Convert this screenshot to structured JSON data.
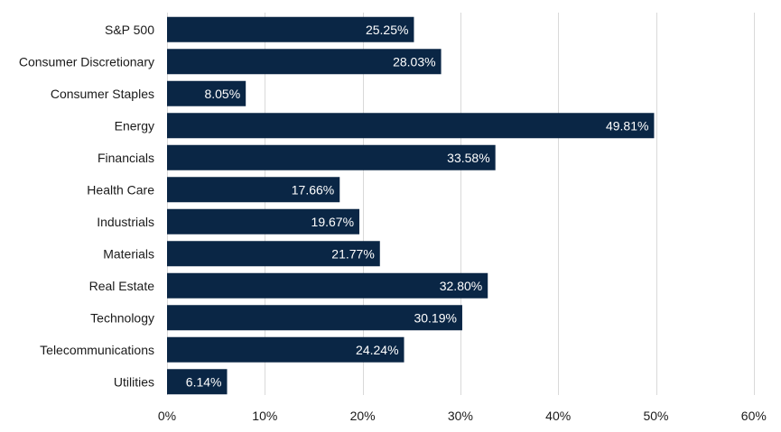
{
  "chart_data": {
    "type": "bar",
    "orientation": "horizontal",
    "categories": [
      "S&P 500",
      "Consumer Discretionary",
      "Consumer Staples",
      "Energy",
      "Financials",
      "Health Care",
      "Industrials",
      "Materials",
      "Real Estate",
      "Technology",
      "Telecommunications",
      "Utilities"
    ],
    "values": [
      25.25,
      28.03,
      8.05,
      49.81,
      33.58,
      17.66,
      19.67,
      21.77,
      32.8,
      30.19,
      24.24,
      6.14
    ],
    "data_labels": [
      "25.25%",
      "28.03%",
      "8.05%",
      "49.81%",
      "33.58%",
      "17.66%",
      "19.67%",
      "21.77%",
      "32.80%",
      "30.19%",
      "24.24%",
      "6.14%"
    ],
    "x_ticks": [
      "0%",
      "10%",
      "20%",
      "30%",
      "40%",
      "50%",
      "60%"
    ],
    "x_tick_values": [
      0,
      10,
      20,
      30,
      40,
      50,
      60
    ],
    "xlim": [
      0,
      60
    ],
    "title": "",
    "xlabel": "",
    "ylabel": "",
    "grid": "vertical",
    "legend": "none",
    "bar_color": "#0a2645",
    "grid_color": "#d9d9d9"
  }
}
